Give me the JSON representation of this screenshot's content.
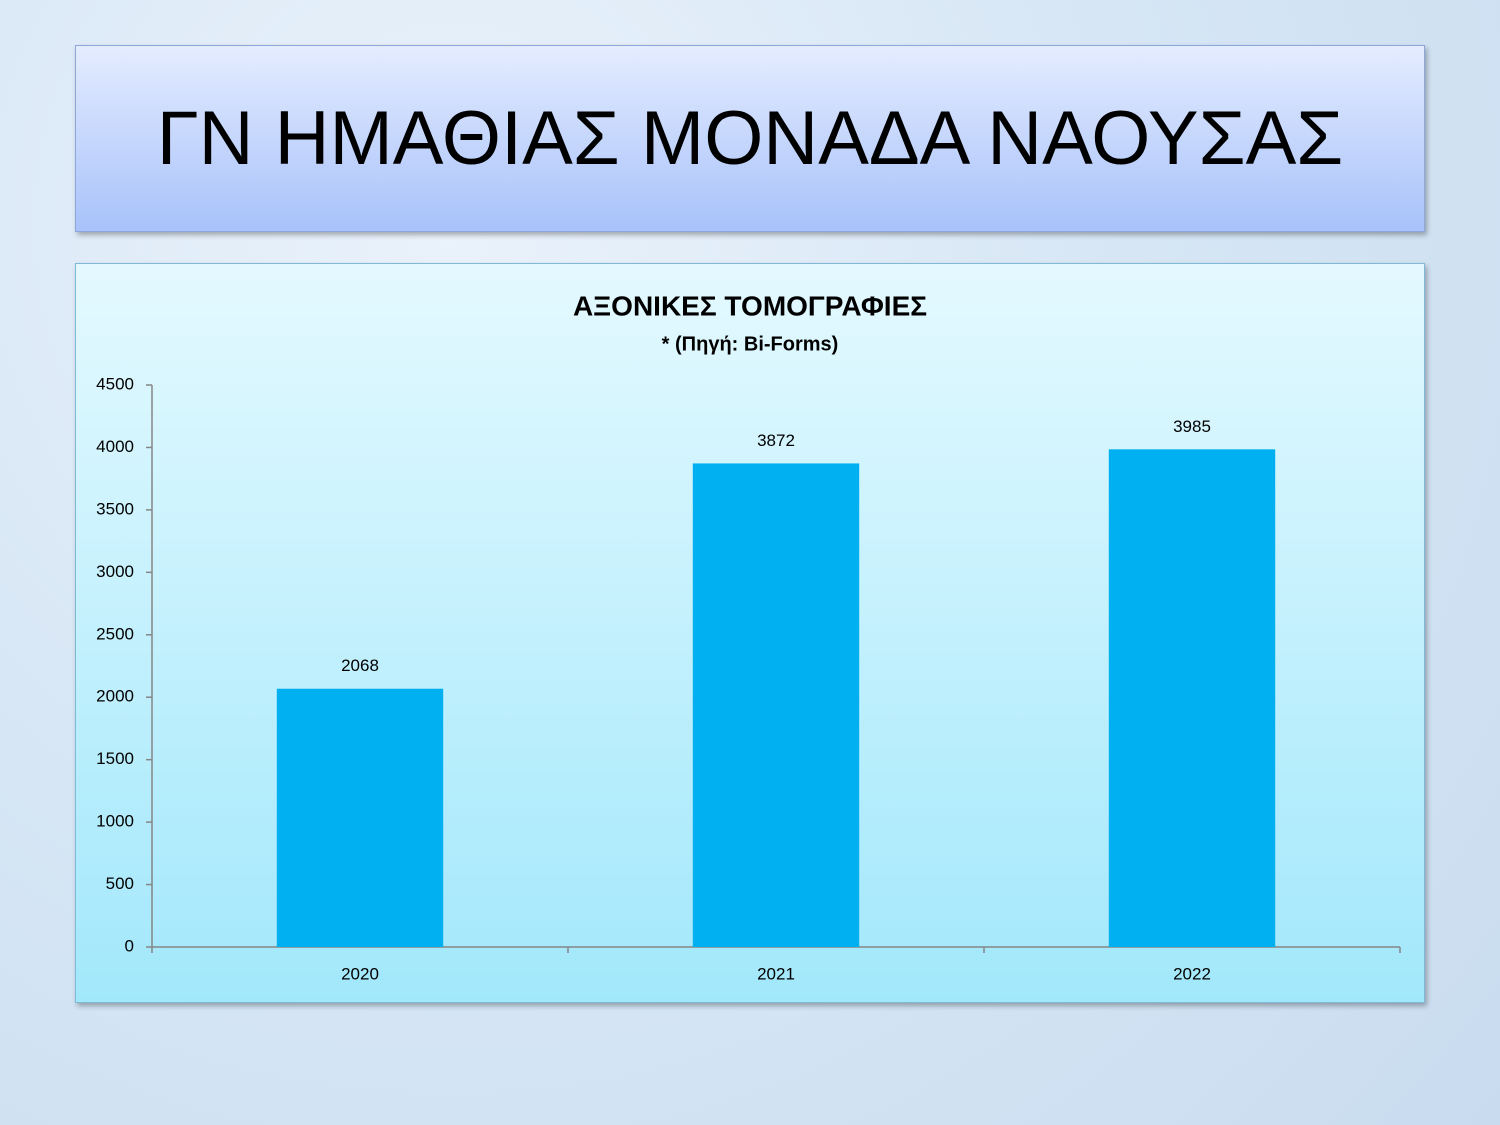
{
  "header": {
    "title": "ΓΝ ΗΜΑΘΙΑΣ ΜΟΝΑΔΑ ΝΑΟΥΣΑΣ"
  },
  "chart_data": {
    "type": "bar",
    "title": "ΑΞΟΝΙΚΕΣ ΤΟΜΟΓΡΑΦΙΕΣ",
    "subtitle": "* (Πηγή: Bi-Forms)",
    "categories": [
      "2020",
      "2021",
      "2022"
    ],
    "values": [
      2068,
      3872,
      3985
    ],
    "color": "#00b0f0",
    "ylim": [
      0,
      4500
    ],
    "yticks": [
      0,
      500,
      1000,
      1500,
      2000,
      2500,
      3000,
      3500,
      4000,
      4500
    ],
    "grid": false,
    "data_labels": true
  }
}
